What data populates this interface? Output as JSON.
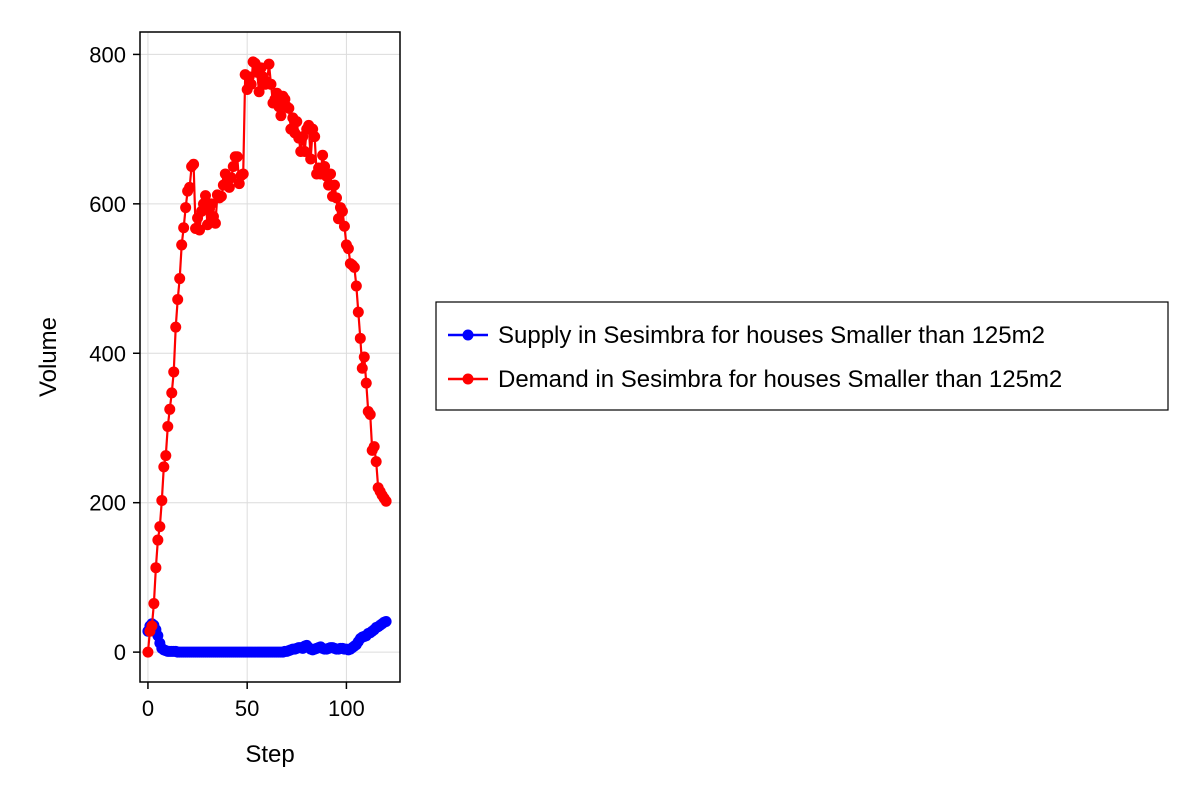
{
  "chart_data": {
    "type": "line",
    "xlabel": "Step",
    "ylabel": "Volume",
    "xlim": [
      -4,
      127
    ],
    "ylim": [
      -40,
      830
    ],
    "xticks": [
      0,
      50,
      100
    ],
    "yticks": [
      0,
      200,
      400,
      600,
      800
    ],
    "grid": true,
    "legend_position": "right",
    "series": [
      {
        "name": "Supply in Sesimbra for houses Smaller than 125m2",
        "color": "#0000ff",
        "x": [
          0,
          1,
          2,
          3,
          4,
          5,
          6,
          7,
          8,
          9,
          10,
          11,
          12,
          13,
          14,
          15,
          16,
          17,
          18,
          19,
          20,
          21,
          22,
          23,
          24,
          25,
          26,
          27,
          28,
          29,
          30,
          31,
          32,
          33,
          34,
          35,
          36,
          37,
          38,
          39,
          40,
          41,
          42,
          43,
          44,
          45,
          46,
          47,
          48,
          49,
          50,
          51,
          52,
          53,
          54,
          55,
          56,
          57,
          58,
          59,
          60,
          61,
          62,
          63,
          64,
          65,
          66,
          67,
          68,
          69,
          70,
          71,
          72,
          73,
          74,
          75,
          76,
          77,
          78,
          79,
          80,
          81,
          82,
          83,
          84,
          85,
          86,
          87,
          88,
          89,
          90,
          91,
          92,
          93,
          94,
          95,
          96,
          97,
          98,
          99,
          100,
          101,
          102,
          103,
          104,
          105,
          106,
          107,
          108,
          109,
          110,
          111,
          112,
          113,
          114,
          115,
          116,
          117,
          118,
          119,
          120
        ],
        "values": [
          28,
          35,
          38,
          36,
          30,
          22,
          12,
          5,
          3,
          2,
          1,
          1,
          1,
          1,
          1,
          0,
          0,
          0,
          0,
          0,
          0,
          0,
          0,
          0,
          0,
          0,
          0,
          0,
          0,
          0,
          0,
          0,
          0,
          0,
          0,
          0,
          0,
          0,
          0,
          0,
          0,
          0,
          0,
          0,
          0,
          0,
          0,
          0,
          0,
          0,
          0,
          0,
          0,
          0,
          0,
          0,
          0,
          0,
          0,
          0,
          0,
          0,
          0,
          0,
          0,
          0,
          0,
          0,
          0,
          1,
          1,
          2,
          3,
          4,
          4,
          5,
          6,
          6,
          5,
          8,
          9,
          6,
          4,
          3,
          4,
          5,
          6,
          7,
          5,
          4,
          4,
          5,
          6,
          6,
          5,
          4,
          4,
          5,
          5,
          4,
          4,
          3,
          4,
          6,
          8,
          10,
          14,
          18,
          20,
          21,
          22,
          25,
          26,
          28,
          30,
          33,
          34,
          36,
          38,
          40,
          41
        ]
      },
      {
        "name": "Demand in Sesimbra for houses Smaller than 125m2",
        "color": "#ff0000",
        "x": [
          0,
          1,
          2,
          3,
          4,
          5,
          6,
          7,
          8,
          9,
          10,
          11,
          12,
          13,
          14,
          15,
          16,
          17,
          18,
          19,
          20,
          21,
          22,
          23,
          24,
          25,
          26,
          27,
          28,
          29,
          30,
          31,
          32,
          33,
          34,
          35,
          36,
          37,
          38,
          39,
          40,
          41,
          42,
          43,
          44,
          45,
          46,
          47,
          48,
          49,
          50,
          51,
          52,
          53,
          54,
          55,
          56,
          57,
          58,
          59,
          60,
          61,
          62,
          63,
          64,
          65,
          66,
          67,
          68,
          69,
          70,
          71,
          72,
          73,
          74,
          75,
          76,
          77,
          78,
          79,
          80,
          81,
          82,
          83,
          84,
          85,
          86,
          87,
          88,
          89,
          90,
          91,
          92,
          93,
          94,
          95,
          96,
          97,
          98,
          99,
          100,
          101,
          102,
          103,
          104,
          105,
          106,
          107,
          108,
          109,
          110,
          111,
          112,
          113,
          114,
          115,
          116,
          117,
          118,
          119,
          120
        ],
        "values": [
          0,
          28,
          35,
          65,
          113,
          150,
          168,
          203,
          248,
          263,
          302,
          325,
          347,
          375,
          435,
          472,
          500,
          545,
          568,
          595,
          617,
          622,
          650,
          653,
          567,
          581,
          565,
          590,
          600,
          611,
          572,
          593,
          600,
          583,
          574,
          612,
          608,
          610,
          625,
          640,
          632,
          622,
          635,
          650,
          663,
          663,
          627,
          638,
          640,
          773,
          753,
          770,
          760,
          790,
          788,
          776,
          750,
          782,
          770,
          760,
          763,
          787,
          760,
          735,
          740,
          748,
          730,
          718,
          744,
          740,
          730,
          728,
          700,
          715,
          695,
          710,
          688,
          670,
          690,
          670,
          700,
          705,
          660,
          700,
          690,
          640,
          648,
          640,
          665,
          650,
          637,
          625,
          640,
          610,
          625,
          608,
          580,
          595,
          590,
          570,
          545,
          540,
          520,
          518,
          515,
          490,
          455,
          420,
          380,
          395,
          360,
          322,
          318,
          270,
          275,
          255,
          220,
          215,
          210,
          206,
          202
        ]
      }
    ]
  }
}
